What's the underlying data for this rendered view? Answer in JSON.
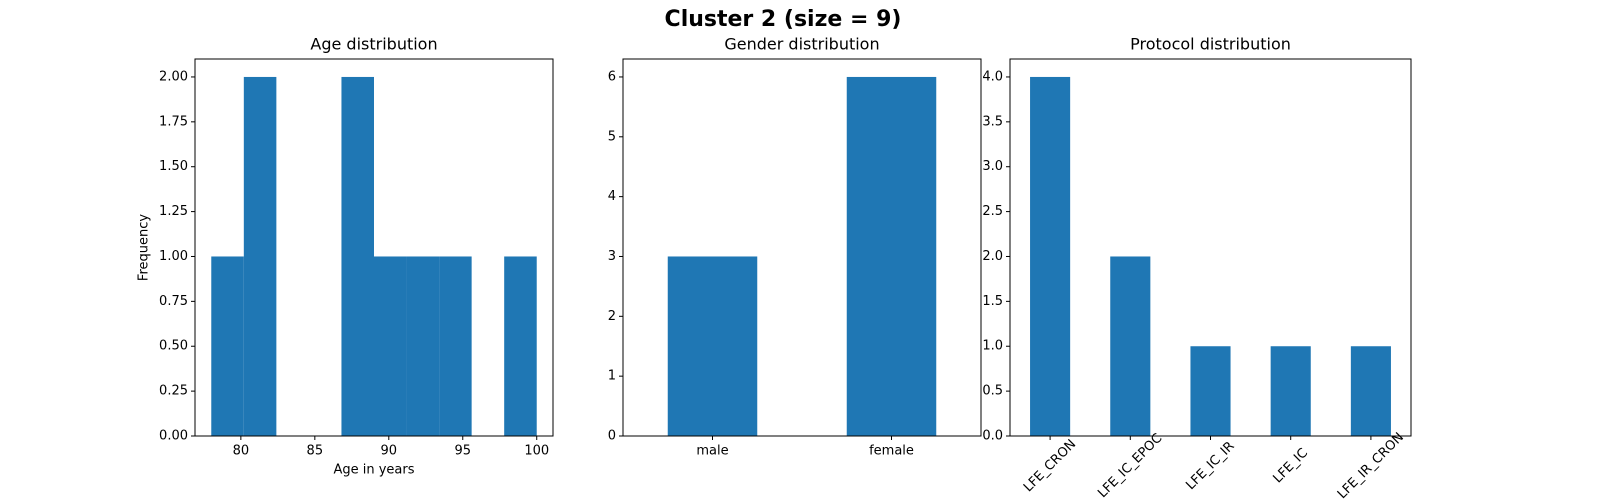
{
  "title": "Cluster 2 (size = 9)",
  "chart_data": [
    {
      "type": "histogram",
      "title": "Age distribution",
      "xlabel": "Age in years",
      "ylabel": "Frequency",
      "color": "#1f77b4",
      "bins": [
        78,
        80.2,
        82.4,
        84.6,
        86.8,
        89,
        91.2,
        93.4,
        95.6,
        97.8,
        100
      ],
      "values": [
        1,
        2,
        0,
        0,
        2,
        1,
        1,
        1,
        0,
        1
      ],
      "xlim": [
        76.9,
        101.1
      ],
      "xticks": [
        80,
        85,
        90,
        95,
        100
      ],
      "ylim": [
        0,
        2.1
      ],
      "yticks": [
        {
          "value": 0,
          "label": "0.00"
        },
        {
          "value": 0.25,
          "label": "0.25"
        },
        {
          "value": 0.5,
          "label": "0.50"
        },
        {
          "value": 0.75,
          "label": "0.75"
        },
        {
          "value": 1,
          "label": "1.00"
        },
        {
          "value": 1.25,
          "label": "1.25"
        },
        {
          "value": 1.5,
          "label": "1.50"
        },
        {
          "value": 1.75,
          "label": "1.75"
        },
        {
          "value": 2,
          "label": "2.00"
        }
      ]
    },
    {
      "type": "bar",
      "title": "Gender distribution",
      "color": "#1f77b4",
      "categories": [
        "male",
        "female"
      ],
      "values": [
        3,
        6
      ],
      "ylim": [
        0,
        6.3
      ],
      "yticks": [
        0,
        1,
        2,
        3,
        4,
        5,
        6
      ]
    },
    {
      "type": "bar",
      "title": "Protocol distribution",
      "color": "#1f77b4",
      "rotate_labels": true,
      "categories": [
        "LFE_CRON",
        "LFE_IC_EPOC",
        "LFE_IC_IR",
        "LFE_IC",
        "LFE_IR_CRON"
      ],
      "values": [
        4,
        2,
        1,
        1,
        1
      ],
      "ylim": [
        0,
        4.2
      ],
      "yticks": [
        {
          "value": 0,
          "label": "0.0"
        },
        {
          "value": 0.5,
          "label": "0.5"
        },
        {
          "value": 1,
          "label": "1.0"
        },
        {
          "value": 1.5,
          "label": "1.5"
        },
        {
          "value": 2,
          "label": "2.0"
        },
        {
          "value": 2.5,
          "label": "2.5"
        },
        {
          "value": 3,
          "label": "3.0"
        },
        {
          "value": 3.5,
          "label": "3.5"
        },
        {
          "value": 4,
          "label": "4.0"
        }
      ]
    }
  ]
}
